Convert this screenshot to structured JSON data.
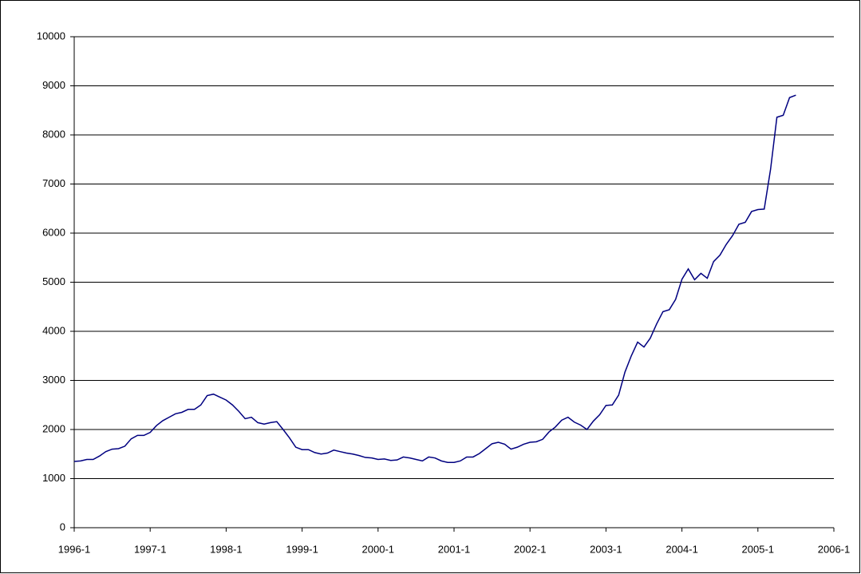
{
  "chart_data": {
    "type": "line",
    "categories": [
      "1996-1",
      null,
      null,
      null,
      null,
      null,
      null,
      null,
      null,
      null,
      null,
      null,
      "1997-1",
      null,
      null,
      null,
      null,
      null,
      null,
      null,
      null,
      null,
      null,
      null,
      "1998-1",
      null,
      null,
      null,
      null,
      null,
      null,
      null,
      null,
      null,
      null,
      null,
      "1999-1",
      null,
      null,
      null,
      null,
      null,
      null,
      null,
      null,
      null,
      null,
      null,
      "2000-1",
      null,
      null,
      null,
      null,
      null,
      null,
      null,
      null,
      null,
      null,
      null,
      "2001-1",
      null,
      null,
      null,
      null,
      null,
      null,
      null,
      null,
      null,
      null,
      null,
      "2002-1",
      null,
      null,
      null,
      null,
      null,
      null,
      null,
      null,
      null,
      null,
      null,
      "2003-1",
      null,
      null,
      null,
      null,
      null,
      null,
      null,
      null,
      null,
      null,
      null,
      "2004-1",
      null,
      null,
      null,
      null,
      null,
      null,
      null,
      null,
      null,
      null,
      null,
      "2005-1",
      null,
      null,
      null,
      null,
      null,
      null,
      null,
      null,
      null,
      null,
      null,
      "2006-1"
    ],
    "values": [
      1350,
      1360,
      1390,
      1390,
      1460,
      1550,
      1600,
      1610,
      1660,
      1810,
      1880,
      1880,
      1940,
      2080,
      2180,
      2250,
      2320,
      2350,
      2410,
      2410,
      2500,
      2690,
      2720,
      2660,
      2600,
      2500,
      2370,
      2220,
      2250,
      2140,
      2110,
      2140,
      2160,
      2000,
      1830,
      1640,
      1590,
      1590,
      1530,
      1500,
      1520,
      1580,
      1550,
      1520,
      1500,
      1470,
      1430,
      1420,
      1390,
      1400,
      1370,
      1380,
      1440,
      1420,
      1390,
      1360,
      1440,
      1420,
      1360,
      1330,
      1330,
      1360,
      1440,
      1440,
      1510,
      1610,
      1710,
      1740,
      1700,
      1600,
      1640,
      1700,
      1740,
      1750,
      1800,
      1950,
      2050,
      2190,
      2250,
      2150,
      2090,
      2000,
      2170,
      2300,
      2490,
      2500,
      2700,
      3170,
      3500,
      3780,
      3680,
      3860,
      4150,
      4400,
      4440,
      4650,
      5060,
      5270,
      5050,
      5180,
      5080,
      5420,
      5550,
      5770,
      5950,
      6180,
      6220,
      6440,
      6480,
      6490,
      7300,
      8360,
      8400,
      8760,
      8810,
      null,
      null,
      null,
      null,
      null,
      null
    ],
    "color": "#000080",
    "ylim": [
      0,
      10000
    ],
    "yticks": [
      0,
      1000,
      2000,
      3000,
      4000,
      5000,
      6000,
      7000,
      8000,
      9000,
      10000
    ],
    "grid": true
  }
}
